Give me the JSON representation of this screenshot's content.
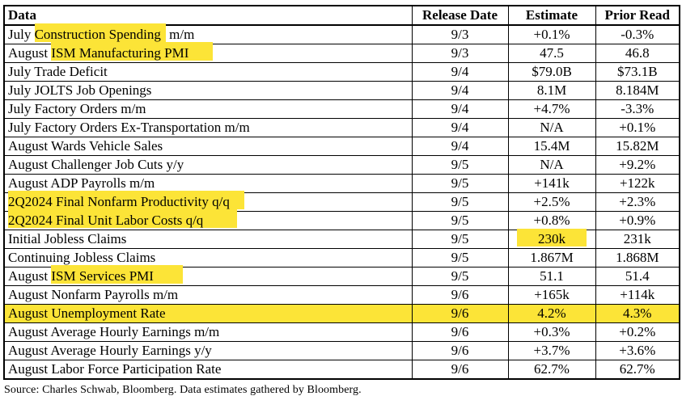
{
  "table": {
    "header": {
      "data": "Data",
      "release_date": "Release Date",
      "estimate": "Estimate",
      "prior_read": "Prior Read"
    },
    "rows": [
      {
        "pre": "July ",
        "hl": "Construction Spending",
        "post": " m/m",
        "hl_extend": 6,
        "release": "9/3",
        "estimate": "+0.1%",
        "prior": "-0.3%",
        "estimate_hl": false,
        "row_hl": false
      },
      {
        "pre": "August ",
        "hl": "ISM Manufacturing PMI",
        "post": "",
        "hl_extend": 30,
        "release": "9/3",
        "estimate": "47.5",
        "prior": "46.8",
        "estimate_hl": false,
        "row_hl": false
      },
      {
        "pre": "July Trade Deficit",
        "hl": "",
        "post": "",
        "hl_extend": 0,
        "release": "9/4",
        "estimate": "$79.0B",
        "prior": "$73.1B",
        "estimate_hl": false,
        "row_hl": false
      },
      {
        "pre": "July JOLTS Job Openings",
        "hl": "",
        "post": "",
        "hl_extend": 0,
        "release": "9/4",
        "estimate": "8.1M",
        "prior": "8.184M",
        "estimate_hl": false,
        "row_hl": false
      },
      {
        "pre": "July Factory Orders m/m",
        "hl": "",
        "post": "",
        "hl_extend": 0,
        "release": "9/4",
        "estimate": "+4.7%",
        "prior": "-3.3%",
        "estimate_hl": false,
        "row_hl": false
      },
      {
        "pre": "July Factory Orders Ex-Transportation m/m",
        "hl": "",
        "post": "",
        "hl_extend": 0,
        "release": "9/4",
        "estimate": "N/A",
        "prior": "+0.1%",
        "estimate_hl": false,
        "row_hl": false
      },
      {
        "pre": "August Wards Vehicle Sales",
        "hl": "",
        "post": "",
        "hl_extend": 0,
        "release": "9/4",
        "estimate": "15.4M",
        "prior": "15.82M",
        "estimate_hl": false,
        "row_hl": false
      },
      {
        "pre": "August Challenger Job Cuts y/y",
        "hl": "",
        "post": "",
        "hl_extend": 0,
        "release": "9/5",
        "estimate": "N/A",
        "prior": "+9.2%",
        "estimate_hl": false,
        "row_hl": false
      },
      {
        "pre": "August ADP Payrolls m/m",
        "hl": "",
        "post": "",
        "hl_extend": 0,
        "release": "9/5",
        "estimate": "+141k",
        "prior": "+122k",
        "estimate_hl": false,
        "row_hl": false
      },
      {
        "pre": "",
        "hl": "2Q2024 Final Nonfarm Productivity q/q",
        "post": "",
        "hl_extend": 18,
        "release": "9/5",
        "estimate": "+2.5%",
        "prior": "+2.3%",
        "estimate_hl": false,
        "row_hl": false
      },
      {
        "pre": "",
        "hl": "2Q2024 Final Unit Labor Costs q/q",
        "post": "",
        "hl_extend": 42,
        "release": "9/5",
        "estimate": "+0.8%",
        "prior": "+0.9%",
        "estimate_hl": false,
        "row_hl": false
      },
      {
        "pre": "Initial Jobless Claims",
        "hl": "",
        "post": "",
        "hl_extend": 0,
        "release": "9/5",
        "estimate": "230k",
        "prior": "231k",
        "estimate_hl": true,
        "row_hl": false
      },
      {
        "pre": "Continuing Jobless Claims",
        "hl": "",
        "post": "",
        "hl_extend": 0,
        "release": "9/5",
        "estimate": "1.867M",
        "prior": "1.868M",
        "estimate_hl": false,
        "row_hl": false
      },
      {
        "pre": "August ",
        "hl": "ISM Services PMI",
        "post": "",
        "hl_extend": 36,
        "release": "9/5",
        "estimate": "51.1",
        "prior": "51.4",
        "estimate_hl": false,
        "row_hl": false
      },
      {
        "pre": "August Nonfarm Payrolls m/m",
        "hl": "",
        "post": "",
        "hl_extend": 0,
        "release": "9/6",
        "estimate": "+165k",
        "prior": "+114k",
        "estimate_hl": false,
        "row_hl": false
      },
      {
        "pre": "August Unemployment Rate",
        "hl": "",
        "post": "",
        "hl_extend": 0,
        "release": "9/6",
        "estimate": "4.2%",
        "prior": "4.3%",
        "estimate_hl": false,
        "row_hl": true
      },
      {
        "pre": "August Average Hourly Earnings m/m",
        "hl": "",
        "post": "",
        "hl_extend": 0,
        "release": "9/6",
        "estimate": "+0.3%",
        "prior": "+0.2%",
        "estimate_hl": false,
        "row_hl": false
      },
      {
        "pre": "August Average Hourly Earnings y/y",
        "hl": "",
        "post": "",
        "hl_extend": 0,
        "release": "9/6",
        "estimate": "+3.7%",
        "prior": "+3.6%",
        "estimate_hl": false,
        "row_hl": false
      },
      {
        "pre": "August Labor Force Participation Rate",
        "hl": "",
        "post": "",
        "hl_extend": 0,
        "release": "9/6",
        "estimate": "62.7%",
        "prior": "62.7%",
        "estimate_hl": false,
        "row_hl": false
      }
    ]
  },
  "source_note": "Source: Charles Schwab, Bloomberg. Data estimates gathered by Bloomberg.",
  "colors": {
    "highlight": "#fce437",
    "border": "#000000",
    "text": "#000000",
    "background": "#ffffff"
  }
}
